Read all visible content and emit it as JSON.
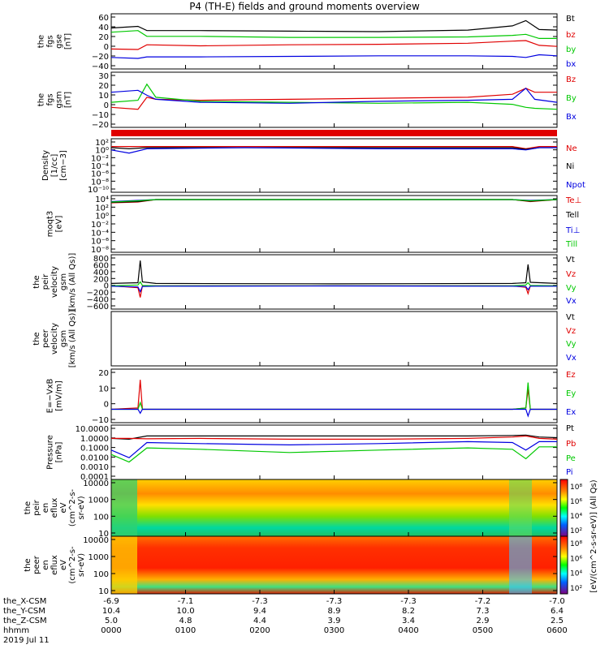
{
  "title": "P4 (TH-E) fields and ground moments overview",
  "colors": {
    "black": "#000000",
    "red": "#e00000",
    "green": "#00c800",
    "blue": "#0000e0"
  },
  "chart_data": [
    {
      "type": "line",
      "ylabel": [
        "the",
        "fgs",
        "gse",
        "[nT]"
      ],
      "yticks": [
        "60",
        "40",
        "20",
        "0",
        "−20",
        "−40"
      ],
      "ylim": [
        -40,
        65
      ],
      "legend": [
        "Bt",
        "bz",
        "by",
        "bx"
      ],
      "series": [
        {
          "name": "Bt",
          "color": "#000000",
          "x": [
            0,
            0.06,
            0.08,
            0.2,
            0.4,
            0.6,
            0.8,
            0.9,
            0.93,
            0.96,
            1
          ],
          "y": [
            38,
            41,
            33,
            33,
            32,
            31,
            34,
            42,
            52,
            35,
            34
          ]
        },
        {
          "name": "bz",
          "color": "#e00000",
          "x": [
            0,
            0.06,
            0.08,
            0.2,
            0.4,
            0.6,
            0.8,
            0.9,
            0.93,
            0.96,
            1
          ],
          "y": [
            -2,
            -3,
            6,
            4,
            6,
            7,
            9,
            13,
            14,
            5,
            3
          ]
        },
        {
          "name": "by",
          "color": "#00c800",
          "x": [
            0,
            0.06,
            0.08,
            0.2,
            0.4,
            0.6,
            0.8,
            0.9,
            0.93,
            0.96,
            1
          ],
          "y": [
            30,
            33,
            22,
            22,
            20,
            20,
            21,
            24,
            26,
            18,
            18
          ]
        },
        {
          "name": "bx",
          "color": "#0000e0",
          "x": [
            0,
            0.06,
            0.08,
            0.2,
            0.4,
            0.6,
            0.8,
            0.9,
            0.93,
            0.96,
            1
          ],
          "y": [
            -18,
            -20,
            -17,
            -17,
            -16,
            -15,
            -15,
            -16,
            -18,
            -13,
            -15
          ]
        }
      ]
    },
    {
      "type": "line",
      "ylabel": [
        "the",
        "fgs",
        "gsm",
        "[nT]"
      ],
      "yticks": [
        "30",
        "20",
        "10",
        "0",
        "−10",
        "−20"
      ],
      "ylim": [
        -25,
        30
      ],
      "legend": [
        "Bz",
        "By",
        "Bx"
      ],
      "series": [
        {
          "name": "Bz",
          "color": "#e00000",
          "x": [
            0,
            0.06,
            0.08,
            0.1,
            0.2,
            0.4,
            0.6,
            0.8,
            0.9,
            0.93,
            0.95,
            1
          ],
          "y": [
            -5,
            -7,
            5,
            3,
            2,
            3,
            4,
            5,
            8,
            14,
            10,
            10
          ]
        },
        {
          "name": "By",
          "color": "#00c800",
          "x": [
            0,
            0.06,
            0.08,
            0.1,
            0.2,
            0.4,
            0.6,
            0.8,
            0.9,
            0.93,
            0.95,
            1
          ],
          "y": [
            0,
            2,
            18,
            5,
            1,
            0,
            -1,
            0,
            -2,
            -5,
            -6,
            -7
          ]
        },
        {
          "name": "Bx",
          "color": "#0000e0",
          "x": [
            0,
            0.06,
            0.08,
            0.1,
            0.2,
            0.4,
            0.6,
            0.8,
            0.9,
            0.93,
            0.95,
            1
          ],
          "y": [
            10,
            12,
            7,
            3,
            0,
            -1,
            1,
            2,
            3,
            14,
            3,
            0
          ]
        }
      ]
    },
    {
      "type": "line",
      "ylabel": [
        "Density",
        "[1/cc]",
        "[cm−3]"
      ],
      "yticks": [
        "10²",
        "10⁰",
        "10⁻²",
        "10⁻⁴",
        "10⁻⁶",
        "10⁻⁸",
        "10⁻¹⁰"
      ],
      "legend": [
        "Ne",
        "Ni",
        "Npot"
      ],
      "series": [
        {
          "name": "Ne",
          "color": "#e00000",
          "x": [
            0,
            0.04,
            0.08,
            0.3,
            0.6,
            0.9,
            0.93,
            0.96,
            1
          ],
          "y": [
            0.6,
            0.6,
            0.6,
            0.6,
            0.6,
            0.6,
            0.4,
            0.6,
            0.6
          ]
        },
        {
          "name": "Ni",
          "color": "#000000",
          "x": [
            0,
            0.04,
            0.08,
            0.3,
            0.6,
            0.9,
            0.93,
            0.96,
            1
          ],
          "y": [
            0.5,
            0.4,
            0.5,
            0.5,
            0.5,
            0.5,
            0.35,
            0.5,
            0.5
          ]
        },
        {
          "name": "Npot",
          "color": "#0000e0",
          "x": [
            0,
            0.04,
            0.08,
            0.3,
            0.6,
            0.9,
            0.93,
            0.96,
            1
          ],
          "y": [
            0.3,
            0.02,
            0.4,
            0.5,
            0.4,
            0.4,
            0.3,
            0.5,
            0.5
          ]
        }
      ]
    },
    {
      "type": "line",
      "ylabel": [
        "moqt3",
        "[eV]"
      ],
      "yticks": [
        "10⁴",
        "10²",
        "10⁰",
        "10⁻²",
        "10⁻⁴",
        "10⁻⁶",
        "10⁻⁸"
      ],
      "legend": [
        "Te⊥",
        "Tell",
        "Ti⊥",
        "Till"
      ],
      "series": [
        {
          "name": "Te⊥",
          "color": "#e00000",
          "x": [
            0,
            0.06,
            0.1,
            0.5,
            0.9,
            0.94,
            1
          ],
          "y": [
            3.2,
            3.4,
            4,
            4,
            4,
            3.5,
            4
          ]
        },
        {
          "name": "Tell",
          "color": "#000000",
          "x": [
            0,
            0.06,
            0.1,
            0.5,
            0.9,
            0.94,
            1
          ],
          "y": [
            3.3,
            3.5,
            4,
            4,
            4,
            3.6,
            4
          ]
        },
        {
          "name": "Ti⊥",
          "color": "#0000e0",
          "x": [
            0,
            0.06,
            0.1,
            0.5,
            0.9,
            0.94,
            1
          ],
          "y": [
            3.5,
            3.8,
            4,
            4,
            4,
            3.8,
            4
          ]
        },
        {
          "name": "Till",
          "color": "#00c800",
          "x": [
            0,
            0.06,
            0.1,
            0.5,
            0.9,
            0.94,
            1
          ],
          "y": [
            3.4,
            3.7,
            4,
            4,
            4,
            3.7,
            4
          ]
        }
      ]
    },
    {
      "type": "line",
      "ylabel": [
        "the",
        "peir",
        "velocity",
        "gsm",
        "[km/s (All Qs)]"
      ],
      "yticks": [
        "800",
        "600",
        "400",
        "200",
        "0",
        "−200",
        "−400",
        "−600"
      ],
      "ylim": [
        -600,
        800
      ],
      "legend": [
        "Vt",
        "Vz",
        "Vy",
        "Vx"
      ],
      "series": [
        {
          "name": "Vt",
          "color": "#000000",
          "x": [
            0,
            0.06,
            0.065,
            0.07,
            0.1,
            0.5,
            0.9,
            0.93,
            0.935,
            0.94,
            1
          ],
          "y": [
            60,
            80,
            650,
            100,
            60,
            50,
            60,
            80,
            550,
            90,
            60
          ]
        },
        {
          "name": "Vz",
          "color": "#e00000",
          "x": [
            0,
            0.06,
            0.065,
            0.07,
            0.1,
            0.5,
            0.9,
            0.93,
            0.935,
            0.94,
            1
          ],
          "y": [
            0,
            -50,
            -300,
            0,
            0,
            0,
            0,
            -40,
            -200,
            0,
            0
          ]
        },
        {
          "name": "Vy",
          "color": "#00c800",
          "x": [
            0,
            0.06,
            0.065,
            0.07,
            0.1,
            0.5,
            0.9,
            0.93,
            0.935,
            0.94,
            1
          ],
          "y": [
            0,
            20,
            100,
            10,
            0,
            0,
            0,
            20,
            80,
            10,
            0
          ]
        },
        {
          "name": "Vx",
          "color": "#0000e0",
          "x": [
            0,
            0.06,
            0.065,
            0.07,
            0.1,
            0.5,
            0.9,
            0.93,
            0.935,
            0.94,
            1
          ],
          "y": [
            -10,
            -30,
            -150,
            -20,
            -10,
            -5,
            -10,
            -20,
            -100,
            -10,
            -10
          ]
        }
      ]
    },
    {
      "type": "line",
      "ylabel": [
        "the",
        "peer",
        "velocity",
        "gsm",
        "[km/s (All Qs)]"
      ],
      "yticks": [],
      "legend": [
        "Vt",
        "Vz",
        "Vy",
        "Vx"
      ],
      "series": []
    },
    {
      "type": "line",
      "ylabel": [
        "E=−VxB",
        "[mV/m]"
      ],
      "yticks": [
        "20",
        "10",
        "0",
        "−10"
      ],
      "ylim": [
        -10,
        30
      ],
      "legend": [
        "Ez",
        "Ey",
        "Ex"
      ],
      "series": [
        {
          "name": "Ez",
          "color": "#e00000",
          "x": [
            0,
            0.06,
            0.065,
            0.07,
            0.1,
            0.5,
            0.9,
            0.93,
            0.935,
            0.94,
            1
          ],
          "y": [
            0,
            1,
            22,
            0,
            0,
            0,
            0,
            1,
            15,
            0,
            0
          ]
        },
        {
          "name": "Ey",
          "color": "#00c800",
          "x": [
            0,
            0.06,
            0.065,
            0.07,
            0.1,
            0.5,
            0.9,
            0.93,
            0.935,
            0.94,
            1
          ],
          "y": [
            0,
            0,
            5,
            0,
            0,
            0,
            0,
            1,
            20,
            0,
            0
          ]
        },
        {
          "name": "Ex",
          "color": "#0000e0",
          "x": [
            0,
            0.06,
            0.065,
            0.07,
            0.1,
            0.5,
            0.9,
            0.93,
            0.935,
            0.94,
            1
          ],
          "y": [
            0,
            0,
            -3,
            0,
            0,
            0,
            0,
            0,
            -5,
            0,
            0
          ]
        }
      ]
    },
    {
      "type": "line",
      "ylabel": [
        "Pressure",
        "[nPa]"
      ],
      "yticks": [
        "10.0000",
        "1.0000",
        "0.1000",
        "0.0100",
        "0.0010",
        "0.0001"
      ],
      "legend": [
        "Pt",
        "Pb",
        "Pe",
        "Pi"
      ],
      "series": [
        {
          "name": "Pt",
          "color": "#000000",
          "x": [
            0,
            0.04,
            0.08,
            0.2,
            0.4,
            0.6,
            0.8,
            0.9,
            0.93,
            0.96,
            1
          ],
          "y": [
            0.6,
            0.5,
            1,
            1,
            1,
            1,
            1,
            1.1,
            1.2,
            0.8,
            0.7
          ]
        },
        {
          "name": "Pb",
          "color": "#e00000",
          "x": [
            0,
            0.04,
            0.08,
            0.2,
            0.4,
            0.6,
            0.8,
            0.9,
            0.93,
            0.96,
            1
          ],
          "y": [
            0.6,
            0.6,
            0.55,
            0.6,
            0.5,
            0.5,
            0.6,
            0.8,
            1,
            0.6,
            0.5
          ]
        },
        {
          "name": "Pe",
          "color": "#00c800",
          "x": [
            0,
            0.04,
            0.08,
            0.2,
            0.4,
            0.6,
            0.8,
            0.9,
            0.93,
            0.96,
            1
          ],
          "y": [
            0.02,
            0.004,
            0.08,
            0.06,
            0.03,
            0.05,
            0.08,
            0.06,
            0.008,
            0.1,
            0.1
          ]
        },
        {
          "name": "Pi",
          "color": "#0000e0",
          "x": [
            0,
            0.04,
            0.08,
            0.2,
            0.4,
            0.6,
            0.8,
            0.9,
            0.93,
            0.96,
            1
          ],
          "y": [
            0.05,
            0.01,
            0.25,
            0.2,
            0.15,
            0.2,
            0.3,
            0.25,
            0.05,
            0.3,
            0.3
          ]
        }
      ]
    },
    {
      "type": "heatmap",
      "ylabel": [
        "the",
        "peir",
        "en",
        "eflux",
        "eV",
        "(cm^2-s-",
        "sr-eV)"
      ],
      "yticks": [
        "10000",
        "1000",
        "100",
        "10"
      ],
      "colorbar_ticks": [
        "10⁸",
        "10⁶",
        "10⁴",
        "10²"
      ]
    },
    {
      "type": "heatmap",
      "ylabel": [
        "the",
        "peer",
        "en",
        "eflux",
        "eV",
        "(cm^2-s-",
        "sr-eV)"
      ],
      "yticks": [
        "10000",
        "1000",
        "100",
        "10"
      ],
      "colorbar_ticks": [
        "10⁸",
        "10⁶",
        "10⁴",
        "10²"
      ]
    }
  ],
  "colorbar_label": "[eV/(cm^2-s-sr-eV)] (All Qs)",
  "xaxis": {
    "rows": [
      {
        "label": "the_X-CSM",
        "values": [
          "-6.9",
          "-7.1",
          "-7.3",
          "-7.3",
          "-7.3",
          "-7.2",
          "-7.0"
        ]
      },
      {
        "label": "the_Y-CSM",
        "values": [
          "10.4",
          "10.0",
          "9.4",
          "8.9",
          "8.2",
          "7.3",
          "6.4"
        ]
      },
      {
        "label": "the_Z-CSM",
        "values": [
          "5.0",
          "4.8",
          "4.4",
          "3.9",
          "3.4",
          "2.9",
          "2.5"
        ]
      },
      {
        "label": "hhmm",
        "values": [
          "0000",
          "0100",
          "0200",
          "0300",
          "0400",
          "0500",
          "0600"
        ]
      }
    ],
    "date": "2019 Jul 11"
  }
}
